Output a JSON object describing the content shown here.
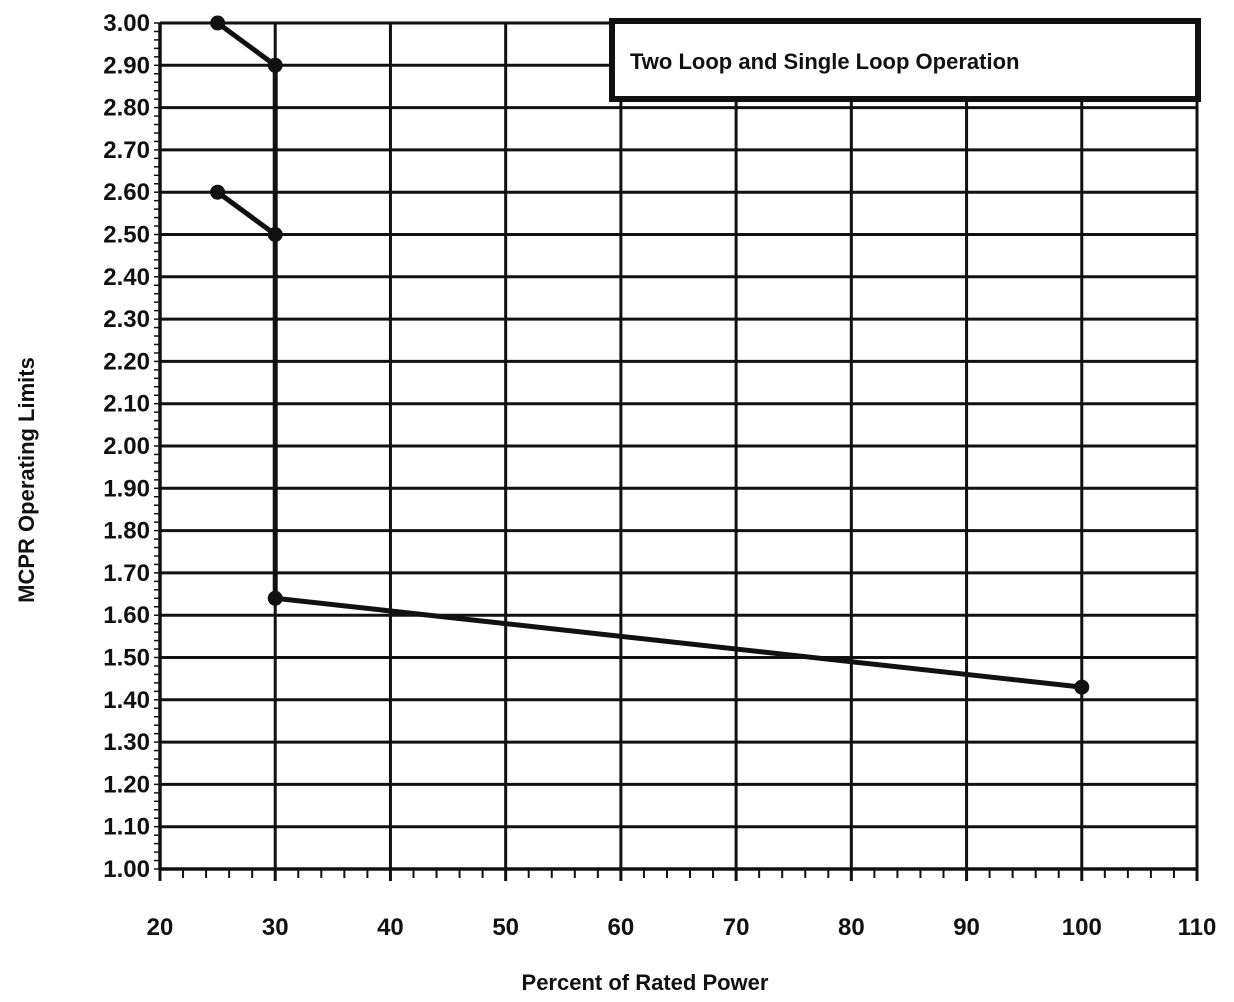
{
  "chart_data": {
    "type": "line",
    "xlabel": "Percent of Rated Power",
    "ylabel": "MCPR Operating Limits",
    "legend_box_text": "Two Loop and Single Loop Operation",
    "legend_placement": "top-right",
    "grid": true,
    "xlim": [
      20,
      110
    ],
    "ylim": [
      1.0,
      3.0
    ],
    "x_ticks": [
      "20",
      "30",
      "40",
      "50",
      "60",
      "70",
      "80",
      "90",
      "100",
      "110"
    ],
    "y_ticks": [
      "1.00",
      "1.10",
      "1.20",
      "1.30",
      "1.40",
      "1.50",
      "1.60",
      "1.70",
      "1.80",
      "1.90",
      "2.00",
      "2.10",
      "2.20",
      "2.30",
      "2.40",
      "2.50",
      "2.60",
      "2.70",
      "2.80",
      "2.90",
      "3.00"
    ],
    "series": [
      {
        "x": [
          25,
          30,
          30,
          100
        ],
        "y": [
          3.0,
          2.9,
          1.64,
          1.43
        ]
      },
      {
        "x": [
          25,
          30
        ],
        "y": [
          2.6,
          2.5
        ]
      }
    ]
  }
}
